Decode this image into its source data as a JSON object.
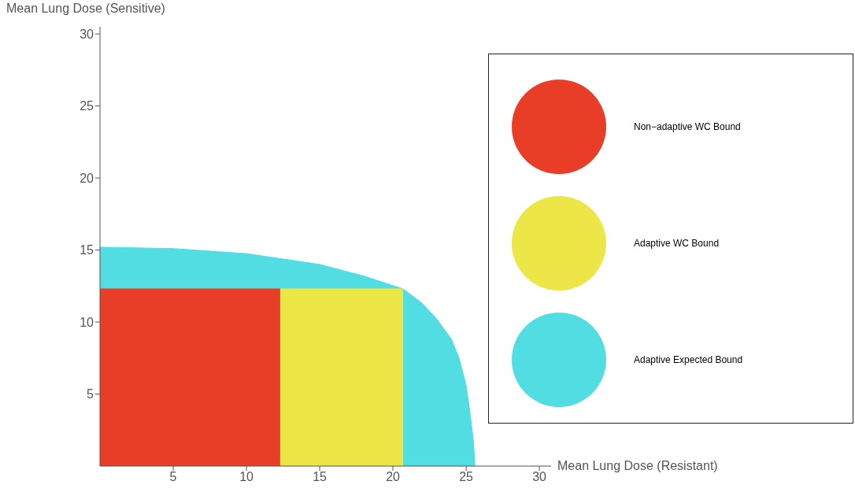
{
  "chart_data": {
    "type": "area",
    "xlabel": "Mean Lung Dose (Resistant)",
    "ylabel": "Mean Lung Dose (Sensitive)",
    "series": [
      {
        "name": "Non−adaptive WC Bound",
        "color": "#e83e27",
        "x": [
          0,
          12.3
        ],
        "values": [
          12.3,
          12.3
        ]
      },
      {
        "name": "Adaptive WC Bound",
        "color": "#ede647",
        "x": [
          12.3,
          20.7
        ],
        "values": [
          12.3,
          12.3
        ]
      },
      {
        "name": "Adaptive Expected Bound",
        "color": "#51dde2",
        "x": [
          0,
          5,
          10,
          15,
          18,
          20.7,
          22,
          23,
          24,
          24.5,
          25,
          25.3,
          25.5,
          25.6
        ],
        "values": [
          15.2,
          15.1,
          14.75,
          14.0,
          13.2,
          12.3,
          11.3,
          10.2,
          8.8,
          7.55,
          5.6,
          3.4,
          1.7,
          0
        ]
      }
    ],
    "xlim": [
      0,
      30.8
    ],
    "ylim": [
      0,
      30.5
    ],
    "xticks": [
      5,
      10,
      15,
      20,
      25,
      30
    ],
    "yticks": [
      5,
      10,
      15,
      20,
      25,
      30
    ],
    "grid": false,
    "legend": "right",
    "marker": "none"
  }
}
